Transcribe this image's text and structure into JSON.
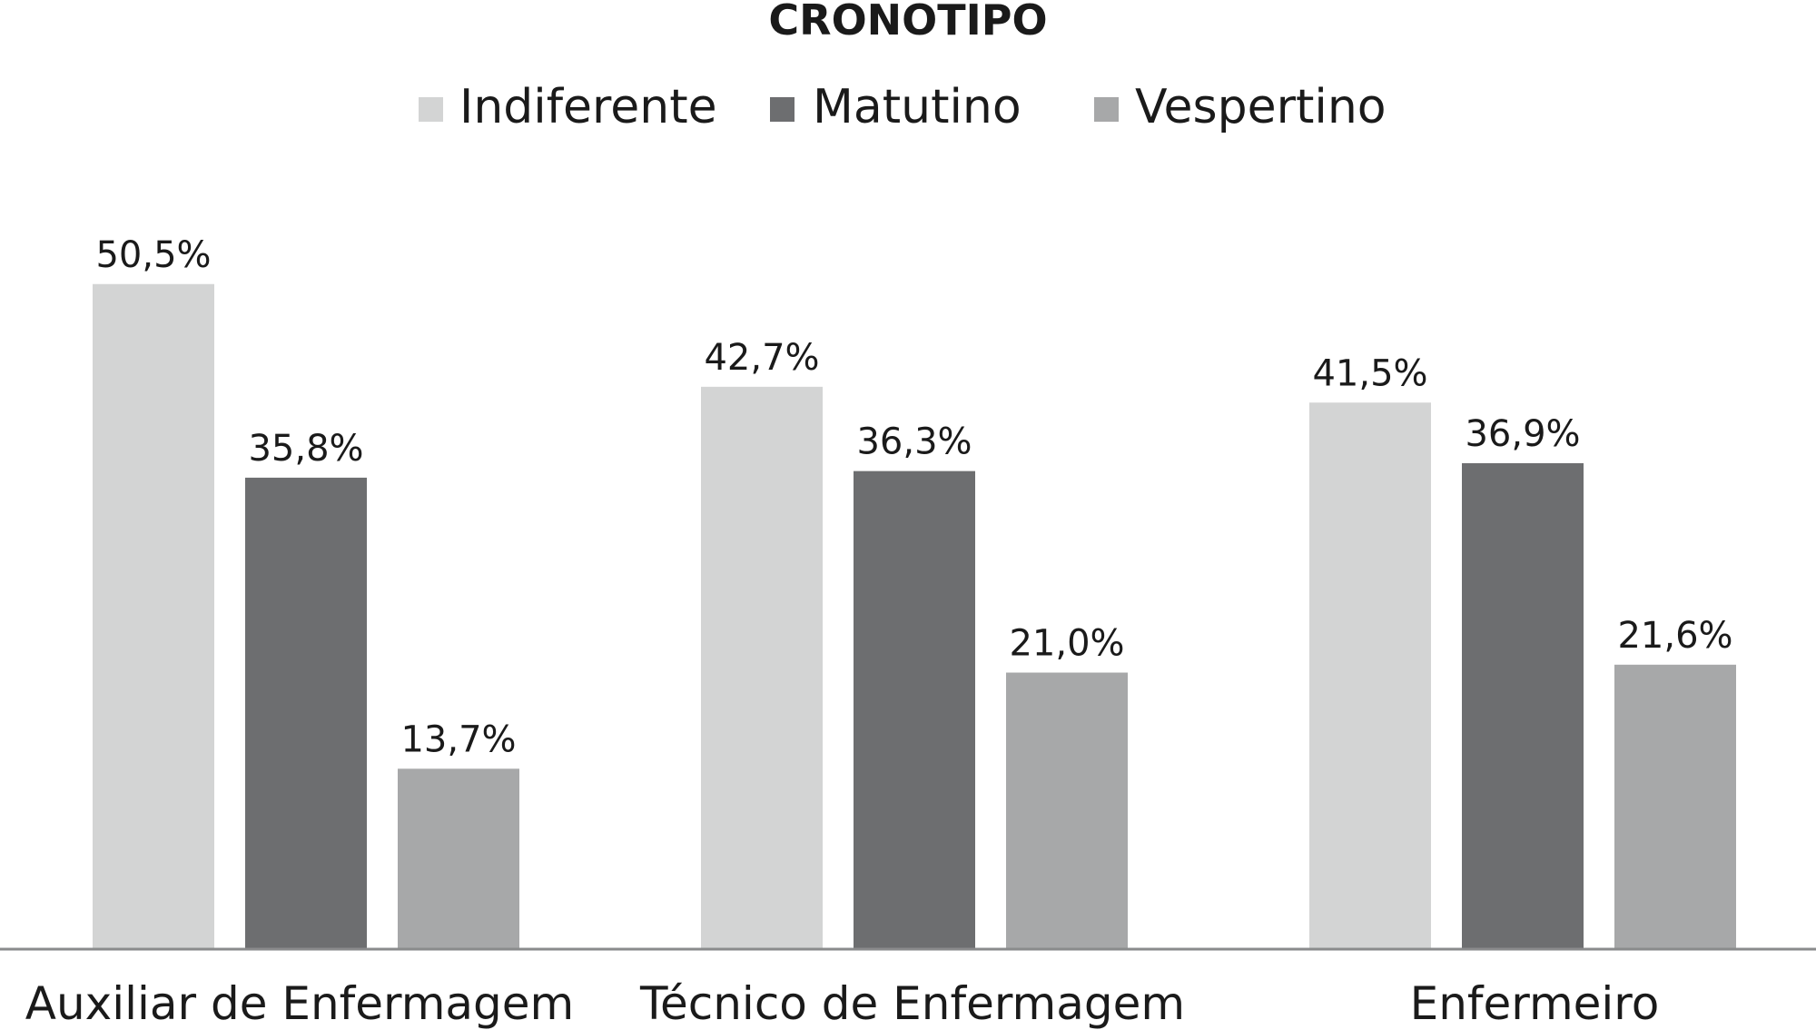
{
  "chart_data": {
    "type": "bar",
    "title": "CRONOTIPO",
    "categories": [
      "Auxiliar de Enfermagem",
      "Técnico de Enfermagem",
      "Enfermeiro"
    ],
    "series": [
      {
        "name": "Indiferente",
        "color": "#d3d4d4",
        "values": [
          50.5,
          42.7,
          41.5
        ],
        "labels": [
          "50,5%",
          "42,7%",
          "41,5%"
        ]
      },
      {
        "name": "Matutino",
        "color": "#6d6e70",
        "values": [
          35.8,
          36.3,
          36.9
        ],
        "labels": [
          "35,8%",
          "36,3%",
          "36,9%"
        ]
      },
      {
        "name": "Vespertino",
        "color": "#a7a8a9",
        "values": [
          13.7,
          21.0,
          21.6
        ],
        "labels": [
          "13,7%",
          "21,0%",
          "21,6%"
        ]
      }
    ],
    "xlabel": "",
    "ylabel": "",
    "ylim": [
      0,
      60
    ],
    "grid": false,
    "legend_position": "top-center",
    "axis_color": "#8a8b8c"
  }
}
